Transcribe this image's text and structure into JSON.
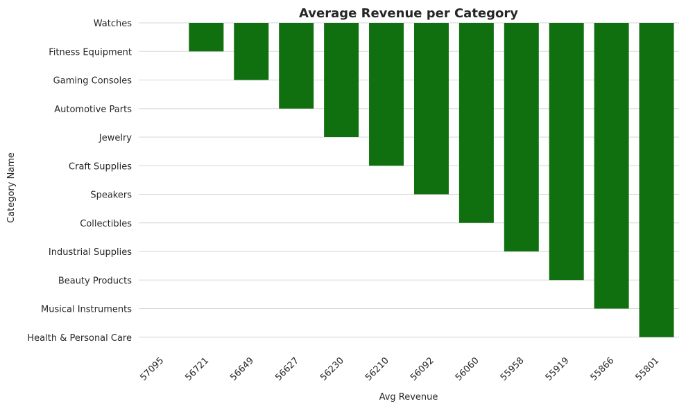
{
  "chart_data": {
    "type": "bar",
    "title": "Average Revenue per Category",
    "xlabel": "Avg Revenue",
    "ylabel": "Category Name",
    "x_tick_labels": [
      "57095",
      "56721",
      "56649",
      "56627",
      "56230",
      "56210",
      "56092",
      "56060",
      "55958",
      "55919",
      "55866",
      "55801"
    ],
    "y_tick_labels": [
      "Watches",
      "Fitness Equipment",
      "Gaming Consoles",
      "Automotive Parts",
      "Jewelry",
      "Craft Supplies",
      "Speakers",
      "Collectibles",
      "Industrial Supplies",
      "Beauty Products",
      "Musical Instruments",
      "Health & Personal Care"
    ],
    "bars": [
      {
        "x": "57095",
        "y_extent": 0
      },
      {
        "x": "56721",
        "y_extent": 1
      },
      {
        "x": "56649",
        "y_extent": 2
      },
      {
        "x": "56627",
        "y_extent": 3
      },
      {
        "x": "56230",
        "y_extent": 4
      },
      {
        "x": "56210",
        "y_extent": 5
      },
      {
        "x": "56092",
        "y_extent": 6
      },
      {
        "x": "56060",
        "y_extent": 7
      },
      {
        "x": "55958",
        "y_extent": 8
      },
      {
        "x": "55919",
        "y_extent": 9
      },
      {
        "x": "55866",
        "y_extent": 10
      },
      {
        "x": "55801",
        "y_extent": 11
      }
    ],
    "bar_color": "#107010",
    "grid": "horizontal",
    "legend": "none"
  }
}
